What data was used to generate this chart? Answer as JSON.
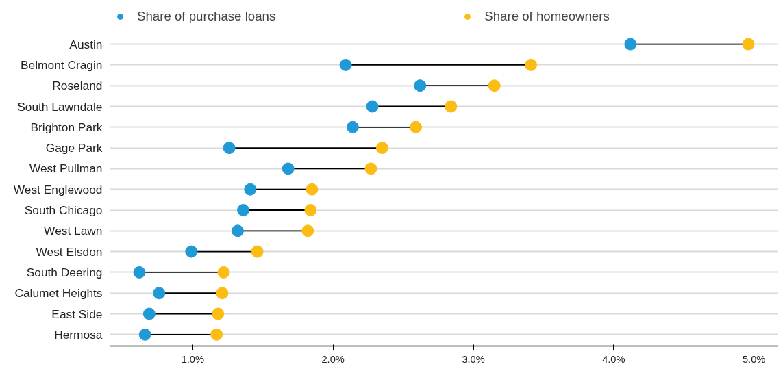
{
  "chart_data": {
    "type": "scatter",
    "orientation": "horizontal",
    "categories": [
      "Austin",
      "Belmont Cragin",
      "Roseland",
      "South Lawndale",
      "Brighton Park",
      "Gage Park",
      "West Pullman",
      "West Englewood",
      "South Chicago",
      "West Lawn",
      "West Elsdon",
      "South Deering",
      "Calumet Heights",
      "East Side",
      "Hermosa"
    ],
    "series": [
      {
        "name": "Share of purchase loans",
        "color": "#1f9ad6",
        "values": [
          4.12,
          2.09,
          2.62,
          2.28,
          2.14,
          1.26,
          1.68,
          1.41,
          1.36,
          1.32,
          0.99,
          0.62,
          0.76,
          0.69,
          0.66
        ]
      },
      {
        "name": "Share of homeowners",
        "color": "#fbbc13",
        "values": [
          4.96,
          3.41,
          3.15,
          2.84,
          2.59,
          2.35,
          2.27,
          1.85,
          1.84,
          1.82,
          1.46,
          1.22,
          1.21,
          1.18,
          1.17
        ]
      }
    ],
    "xlim": [
      0.41,
      5.17
    ],
    "xticks": [
      {
        "value": 1,
        "label": "1.0%"
      },
      {
        "value": 2,
        "label": "2.0%"
      },
      {
        "value": 3,
        "label": "3.0%"
      },
      {
        "value": 4,
        "label": "4.0%"
      },
      {
        "value": 5,
        "label": "5.0%"
      }
    ],
    "grid": "y",
    "legend": "top",
    "marker": "circle"
  }
}
